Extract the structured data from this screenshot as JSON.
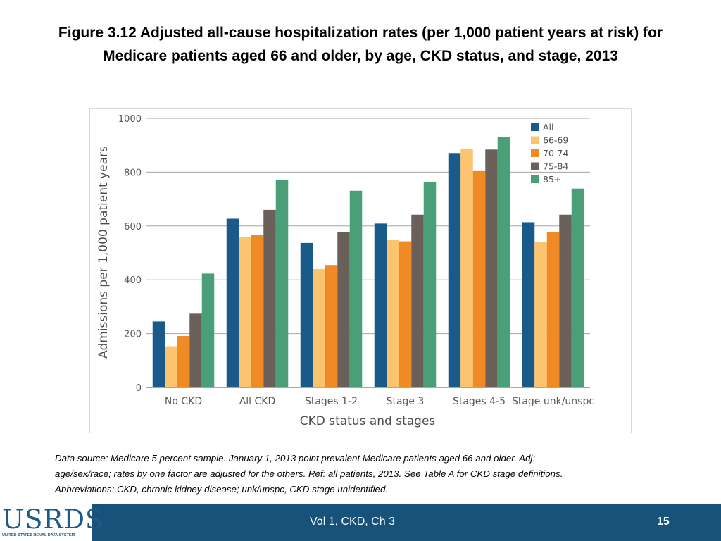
{
  "title": {
    "line1": "Figure 3.12  Adjusted all-cause hospitalization rates (per 1,000 patient years at risk) for",
    "line2": "Medicare patients aged 66 and older, by age, CKD status, and stage, 2013"
  },
  "chart_data": {
    "type": "bar",
    "xlabel": "CKD status and stages",
    "ylabel": "Admissions per 1,000 patient years",
    "ylim": [
      0,
      1000
    ],
    "yticks": [
      0,
      200,
      400,
      600,
      800,
      1000
    ],
    "ytick_labels": [
      "0",
      "200",
      "400",
      "600",
      "800",
      "1000"
    ],
    "grid": true,
    "legend_position": "top-right",
    "categories": [
      "No CKD",
      "All CKD",
      "Stages 1-2",
      "Stage 3",
      "Stages 4-5",
      "Stage unk/unspc"
    ],
    "series": [
      {
        "name": "All",
        "color": "#1a5a8a",
        "values": [
          245,
          627,
          537,
          609,
          871,
          614
        ]
      },
      {
        "name": "66-69",
        "color": "#fcc46f",
        "values": [
          153,
          560,
          440,
          548,
          886,
          540
        ]
      },
      {
        "name": "70-74",
        "color": "#f08a25",
        "values": [
          191,
          568,
          455,
          543,
          804,
          577
        ]
      },
      {
        "name": "75-84",
        "color": "#6b6059",
        "values": [
          274,
          660,
          577,
          642,
          884,
          642
        ]
      },
      {
        "name": "85+",
        "color": "#4a9e78",
        "values": [
          423,
          771,
          731,
          762,
          930,
          739
        ]
      }
    ]
  },
  "note": {
    "line1": "Data source: Medicare 5 percent sample. January 1, 2013 point prevalent Medicare patients aged 66 and older. Adj:",
    "line2": "age/sex/race; rates by one factor are adjusted for the others. Ref: all patients, 2013. See Table A for CKD stage definitions.",
    "line3": "Abbreviations: CKD, chronic kidney disease; unk/unspc, CKD stage unidentified."
  },
  "footer": {
    "logo": "USRDS",
    "logo_subtitle": "UNITED STATES RENAL DATA SYSTEM",
    "center_text": "Vol 1, CKD, Ch 3",
    "page_number": "15"
  }
}
